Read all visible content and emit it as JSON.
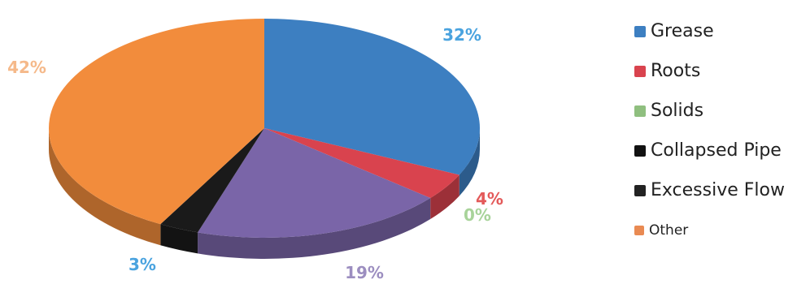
{
  "chart_data": {
    "type": "pie",
    "title": "",
    "slices": [
      {
        "label": "Grease",
        "value": 32,
        "display": "32%",
        "color": "#3d7fc1",
        "label_color": "#4aa3df"
      },
      {
        "label": "Roots",
        "value": 4,
        "display": "4%",
        "color": "#d9434e",
        "label_color": "#e35a5a"
      },
      {
        "label": "Solids",
        "value": 0,
        "display": "0%",
        "color": "#8fbf7f",
        "label_color": "#a8d39a"
      },
      {
        "label": "Collapsed Pipe",
        "value": 19,
        "display": "19%",
        "color": "#7a65a8",
        "label_color": "#9c8ec0"
      },
      {
        "label": "Excessive Flow",
        "value": 3,
        "display": "3%",
        "color": "#1a1a1a",
        "label_color": "#4aa3df"
      },
      {
        "label": "Other",
        "value": 42,
        "display": "42%",
        "color": "#f28c3c",
        "label_color": "#f5b98a"
      }
    ],
    "legend_position": "right"
  },
  "legend": {
    "items": [
      {
        "label": "Grease",
        "color": "#3d7fc1"
      },
      {
        "label": "Roots",
        "color": "#d9434e"
      },
      {
        "label": "Solids",
        "color": "#8fbf7f"
      },
      {
        "label": "Collapsed Pipe",
        "color": "#111111"
      },
      {
        "label": "Excessive Flow",
        "color": "#222222"
      },
      {
        "label": "Other",
        "color": "#e98a52"
      }
    ]
  }
}
